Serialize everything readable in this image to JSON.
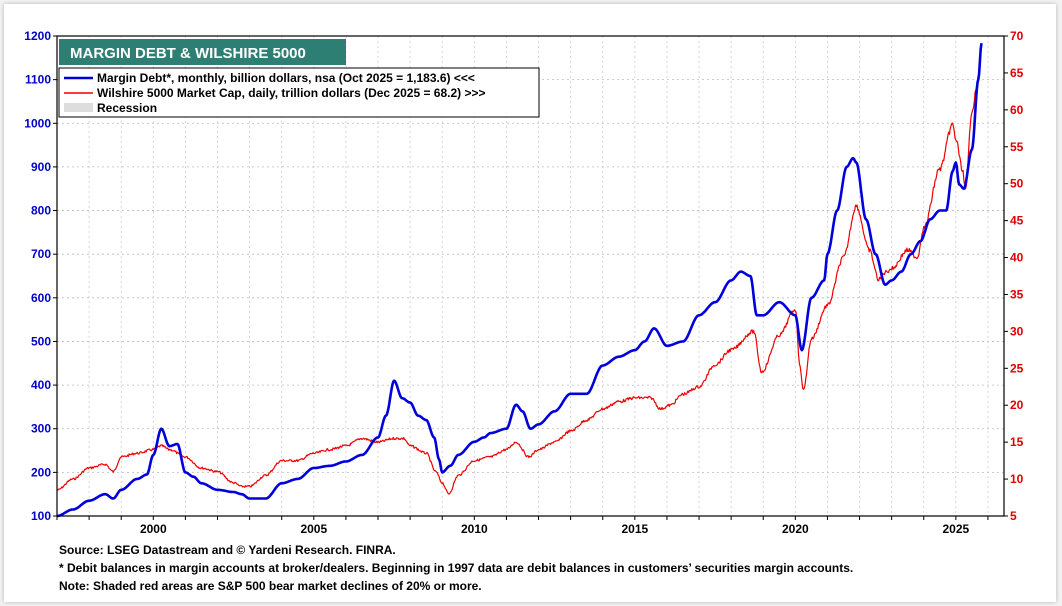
{
  "chart_data": {
    "type": "line",
    "title": "MARGIN DEBT & WILSHIRE 5000",
    "legend_position": "top-left",
    "grid": true,
    "x_axis": {
      "range": [
        1997.0,
        2026.5
      ],
      "tick_labels": [
        "2000",
        "2005",
        "2010",
        "2015",
        "2020",
        "2025"
      ],
      "tick_values": [
        2000,
        2005,
        2010,
        2015,
        2020,
        2025
      ]
    },
    "y_left": {
      "range": [
        100,
        1200
      ],
      "tick_labels": [
        "100",
        "200",
        "300",
        "400",
        "500",
        "600",
        "700",
        "800",
        "900",
        "1000",
        "1100",
        "1200"
      ],
      "color": "#0000cc"
    },
    "y_right": {
      "range": [
        5,
        70
      ],
      "tick_labels": [
        "5",
        "10",
        "15",
        "20",
        "25",
        "30",
        "35",
        "40",
        "45",
        "50",
        "55",
        "60",
        "65",
        "70"
      ],
      "color": "#e00000"
    },
    "series": [
      {
        "name": "Margin Debt*, monthly, billion dollars, nsa (Oct 2025 = 1,183.6) <<<",
        "axis": "left",
        "color": "#0000dd",
        "x": [
          1997.0,
          1997.5,
          1998.0,
          1998.5,
          1998.75,
          1999.0,
          1999.5,
          1999.8,
          2000.0,
          2000.25,
          2000.5,
          2000.75,
          2001.0,
          2001.25,
          2001.5,
          2002.0,
          2002.5,
          2002.75,
          2003.0,
          2003.5,
          2004.0,
          2004.5,
          2005.0,
          2005.5,
          2006.0,
          2006.5,
          2007.0,
          2007.25,
          2007.5,
          2007.75,
          2008.0,
          2008.25,
          2008.5,
          2008.75,
          2008.9,
          2009.0,
          2009.25,
          2009.5,
          2010.0,
          2010.3,
          2010.5,
          2011.0,
          2011.3,
          2011.5,
          2011.75,
          2012.0,
          2012.5,
          2013.0,
          2013.5,
          2014.0,
          2014.5,
          2015.0,
          2015.3,
          2015.6,
          2016.0,
          2016.5,
          2017.0,
          2017.5,
          2018.0,
          2018.3,
          2018.6,
          2018.8,
          2019.0,
          2019.5,
          2020.0,
          2020.2,
          2020.5,
          2020.9,
          2021.0,
          2021.3,
          2021.6,
          2021.8,
          2021.9,
          2022.2,
          2022.5,
          2022.8,
          2023.0,
          2023.3,
          2023.6,
          2023.9,
          2024.2,
          2024.5,
          2024.7,
          2024.9,
          2025.0,
          2025.1,
          2025.25,
          2025.5,
          2025.7,
          2025.8
        ],
        "y": [
          100,
          115,
          135,
          150,
          140,
          160,
          185,
          195,
          240,
          300,
          260,
          265,
          200,
          190,
          175,
          160,
          155,
          150,
          140,
          140,
          175,
          185,
          210,
          215,
          225,
          240,
          280,
          330,
          410,
          370,
          360,
          330,
          320,
          280,
          230,
          200,
          215,
          240,
          270,
          280,
          290,
          300,
          355,
          340,
          300,
          310,
          340,
          380,
          380,
          445,
          465,
          480,
          500,
          530,
          490,
          500,
          560,
          590,
          640,
          660,
          650,
          560,
          560,
          590,
          560,
          480,
          600,
          640,
          700,
          800,
          900,
          920,
          910,
          780,
          700,
          630,
          640,
          660,
          700,
          730,
          780,
          800,
          800,
          890,
          910,
          860,
          850,
          940,
          1100,
          1183.6
        ]
      },
      {
        "name": "Wilshire 5000 Market Cap, daily, trillion dollars  (Dec 2025 = 68.2) >>>",
        "axis": "right",
        "color": "#ee0000",
        "x": [
          1997.0,
          1997.5,
          1998.0,
          1998.5,
          1998.75,
          1999.0,
          1999.5,
          2000.0,
          2000.25,
          2000.5,
          2001.0,
          2001.5,
          2002.0,
          2002.5,
          2002.75,
          2003.0,
          2003.5,
          2004.0,
          2004.5,
          2005.0,
          2005.5,
          2006.0,
          2006.5,
          2007.0,
          2007.5,
          2007.8,
          2008.0,
          2008.5,
          2008.8,
          2009.0,
          2009.2,
          2009.5,
          2010.0,
          2010.5,
          2011.0,
          2011.3,
          2011.7,
          2012.0,
          2012.5,
          2013.0,
          2013.5,
          2014.0,
          2014.5,
          2015.0,
          2015.5,
          2015.8,
          2016.1,
          2016.5,
          2017.0,
          2017.5,
          2018.0,
          2018.7,
          2018.95,
          2019.5,
          2020.0,
          2020.15,
          2020.25,
          2020.5,
          2021.0,
          2021.5,
          2021.9,
          2022.3,
          2022.6,
          2022.8,
          2023.0,
          2023.5,
          2023.8,
          2024.0,
          2024.5,
          2024.9,
          2025.0,
          2025.2,
          2025.3,
          2025.5,
          2025.7,
          2025.8
        ],
        "y": [
          8.5,
          10,
          11.5,
          12,
          11.0,
          13,
          13.5,
          14,
          14.5,
          14.0,
          13,
          11.5,
          11.0,
          9.5,
          9.0,
          9.0,
          10.5,
          12.5,
          12.5,
          13.5,
          14.0,
          14.5,
          15.5,
          15.0,
          15.5,
          15.5,
          14.5,
          13.5,
          11.0,
          9.5,
          8.0,
          10.5,
          12.5,
          13.0,
          14.0,
          15.0,
          13.0,
          14.0,
          15.0,
          16.5,
          18.0,
          19.5,
          20.5,
          21.0,
          21.0,
          19.5,
          20.0,
          21.5,
          22.5,
          25.5,
          27.5,
          30.0,
          24.5,
          29.5,
          33.0,
          25.0,
          22.0,
          29.0,
          33.5,
          40.0,
          47.0,
          41.0,
          37.0,
          38.0,
          38.5,
          41.0,
          40.0,
          44.0,
          52.0,
          58.0,
          56.0,
          52.0,
          49.0,
          60.0,
          64.0,
          68.2
        ]
      },
      {
        "name": "Recession",
        "type": "area",
        "color": "#dddddd"
      }
    ],
    "notes": [
      "Source: LSEG Datastream and © Yardeni Research. FINRA.",
      "* Debit balances in margin accounts at broker/dealers. Beginning in 1997 data are debit balances in customers’ securities margin accounts.",
      "Note: Shaded red areas are S&P 500 bear market declines of 20% or more."
    ]
  }
}
